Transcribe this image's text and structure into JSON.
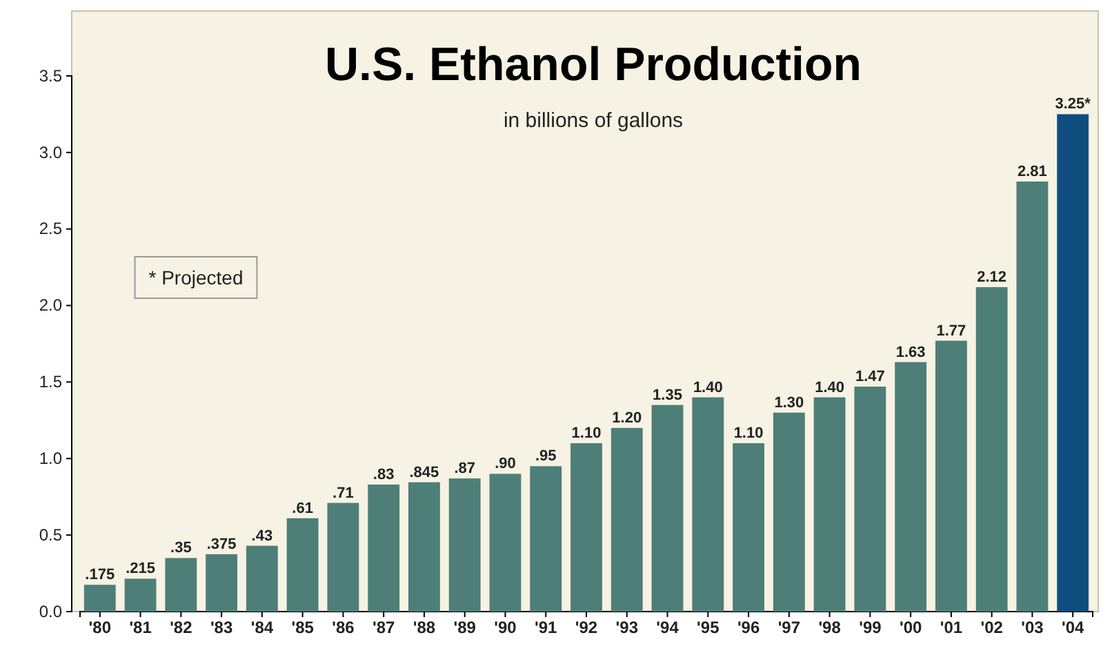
{
  "chart_data": {
    "type": "bar",
    "title": "U.S. Ethanol Production",
    "subtitle": "in billions of gallons",
    "categories": [
      "'80",
      "'81",
      "'82",
      "'83",
      "'84",
      "'85",
      "'86",
      "'87",
      "'88",
      "'89",
      "'90",
      "'91",
      "'92",
      "'93",
      "'94",
      "'95",
      "'96",
      "'97",
      "'98",
      "'99",
      "'00",
      "'01",
      "'02",
      "'03",
      "'04"
    ],
    "values": [
      0.175,
      0.215,
      0.35,
      0.375,
      0.43,
      0.61,
      0.71,
      0.83,
      0.845,
      0.87,
      0.9,
      0.95,
      1.1,
      1.2,
      1.35,
      1.4,
      1.1,
      1.3,
      1.4,
      1.47,
      1.63,
      1.77,
      2.12,
      2.81,
      3.25
    ],
    "value_labels": [
      ".175",
      ".215",
      ".35",
      ".375",
      ".43",
      ".61",
      ".71",
      ".83",
      ".845",
      ".87",
      ".90",
      ".95",
      "1.10",
      "1.20",
      "1.35",
      "1.40",
      "1.10",
      "1.30",
      "1.40",
      "1.47",
      "1.63",
      "1.77",
      "2.12",
      "2.81",
      "3.25*"
    ],
    "colors": [
      "#4e7e78",
      "#4e7e78",
      "#4e7e78",
      "#4e7e78",
      "#4e7e78",
      "#4e7e78",
      "#4e7e78",
      "#4e7e78",
      "#4e7e78",
      "#4e7e78",
      "#4e7e78",
      "#4e7e78",
      "#4e7e78",
      "#4e7e78",
      "#4e7e78",
      "#4e7e78",
      "#4e7e78",
      "#4e7e78",
      "#4e7e78",
      "#4e7e78",
      "#4e7e78",
      "#4e7e78",
      "#4e7e78",
      "#4e7e78",
      "#0f4d7e"
    ],
    "ylim": [
      0,
      3.5
    ],
    "yticks": [
      {
        "value": 0,
        "label": "0.0"
      },
      {
        "value": 0.5,
        "label": "0.5"
      },
      {
        "value": 1,
        "label": "1.0"
      },
      {
        "value": 1.5,
        "label": "1.5"
      },
      {
        "value": 2,
        "label": "2.0"
      },
      {
        "value": 2.5,
        "label": "2.5"
      },
      {
        "value": 3,
        "label": "3.0"
      },
      {
        "value": 3.5,
        "label": "3.5"
      }
    ],
    "grid": false,
    "annotations": [
      "* Projected"
    ]
  }
}
